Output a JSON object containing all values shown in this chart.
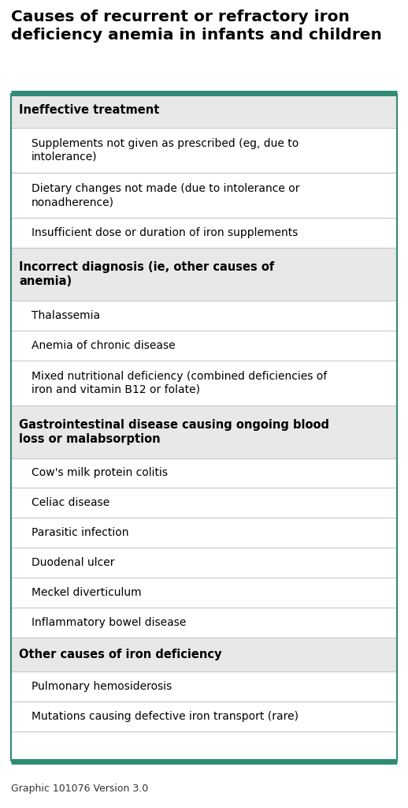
{
  "title": "Causes of recurrent or refractory iron\ndeficiency anemia in infants and children",
  "title_fontsize": 14.5,
  "title_color": "#000000",
  "background_color": "#ffffff",
  "table_bg": "#ffffff",
  "header_bg": "#e8e8e8",
  "border_color": "#2e8b74",
  "row_border_color": "#c8c8c8",
  "caption": "Graphic 101076 Version 3.0",
  "caption_fontsize": 9,
  "rows": [
    {
      "type": "header",
      "text": "Ineffective treatment",
      "lines": 1
    },
    {
      "type": "item",
      "text": "Supplements not given as prescribed (eg, due to\nintolerance)",
      "lines": 2
    },
    {
      "type": "item",
      "text": "Dietary changes not made (due to intolerance or\nnonadherence)",
      "lines": 2
    },
    {
      "type": "item",
      "text": "Insufficient dose or duration of iron supplements",
      "lines": 1
    },
    {
      "type": "header",
      "text": "Incorrect diagnosis (ie, other causes of\nanemia)",
      "lines": 2
    },
    {
      "type": "item",
      "text": "Thalassemia",
      "lines": 1
    },
    {
      "type": "item",
      "text": "Anemia of chronic disease",
      "lines": 1
    },
    {
      "type": "item",
      "text": "Mixed nutritional deficiency (combined deficiencies of\niron and vitamin B12 or folate)",
      "lines": 2
    },
    {
      "type": "header",
      "text": "Gastrointestinal disease causing ongoing blood\nloss or malabsorption",
      "lines": 2
    },
    {
      "type": "item",
      "text": "Cow's milk protein colitis",
      "lines": 1
    },
    {
      "type": "item",
      "text": "Celiac disease",
      "lines": 1
    },
    {
      "type": "item",
      "text": "Parasitic infection",
      "lines": 1
    },
    {
      "type": "item",
      "text": "Duodenal ulcer",
      "lines": 1
    },
    {
      "type": "item",
      "text": "Meckel diverticulum",
      "lines": 1
    },
    {
      "type": "item",
      "text": "Inflammatory bowel disease",
      "lines": 1
    },
    {
      "type": "header",
      "text": "Other causes of iron deficiency",
      "lines": 1
    },
    {
      "type": "item",
      "text": "Pulmonary hemosiderosis",
      "lines": 1
    },
    {
      "type": "item",
      "text": "Mutations causing defective iron transport (rare)",
      "lines": 1
    },
    {
      "type": "empty",
      "text": "",
      "lines": 1
    }
  ],
  "header_fontsize": 10.5,
  "item_fontsize": 10.0
}
